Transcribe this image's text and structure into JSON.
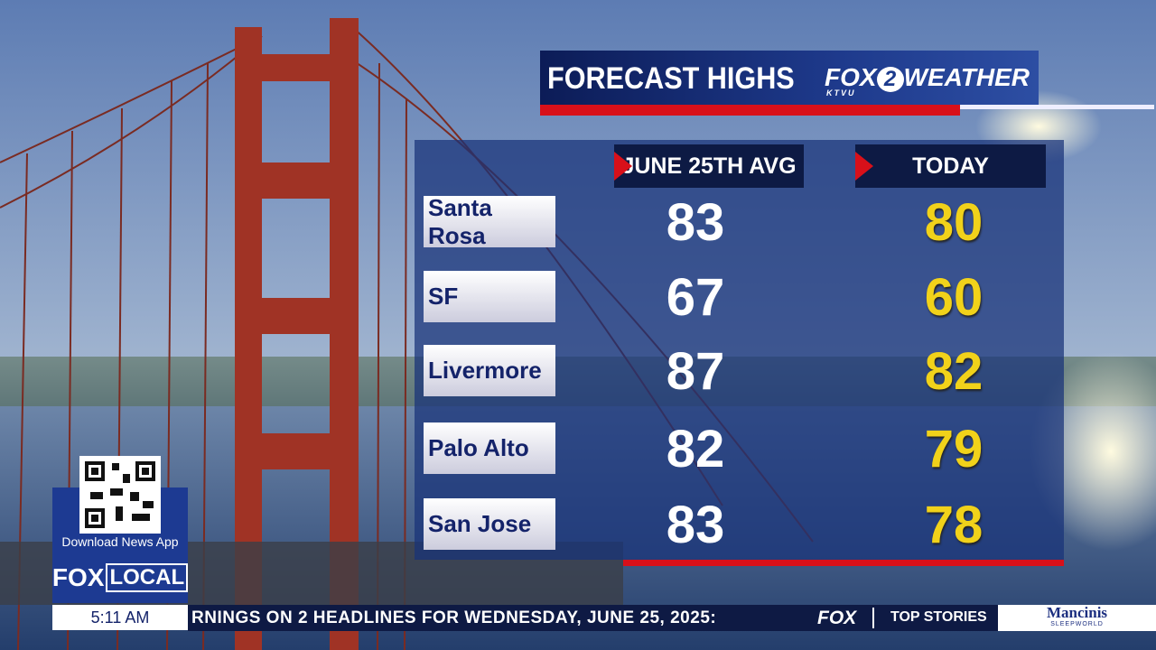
{
  "header": {
    "title": "FORECAST HIGHS",
    "brand": {
      "fox": "FOX",
      "two": "2",
      "station": "KTVU",
      "weather": "WEATHER"
    }
  },
  "table": {
    "columns": [
      "JUNE 25TH AVG",
      "TODAY"
    ],
    "rows": [
      [
        "Santa Rosa",
        "83",
        "80"
      ],
      [
        "SF",
        "67",
        "60"
      ],
      [
        "Livermore",
        "87",
        "82"
      ],
      [
        "Palo Alto",
        "82",
        "79"
      ],
      [
        "San Jose",
        "83",
        "78"
      ]
    ]
  },
  "app_promo": {
    "text": "Download News App"
  },
  "channel": {
    "fox": "FOX",
    "local": "LOCAL"
  },
  "time": "5:11 AM",
  "ticker": {
    "headline": "RNINGS ON 2 HEADLINES FOR WEDNESDAY, JUNE 25, 2025:",
    "brand": "FOX",
    "section": "TOP STORIES",
    "sponsor": "Mancinis",
    "sponsor_sub": "SLEEPWORLD"
  }
}
